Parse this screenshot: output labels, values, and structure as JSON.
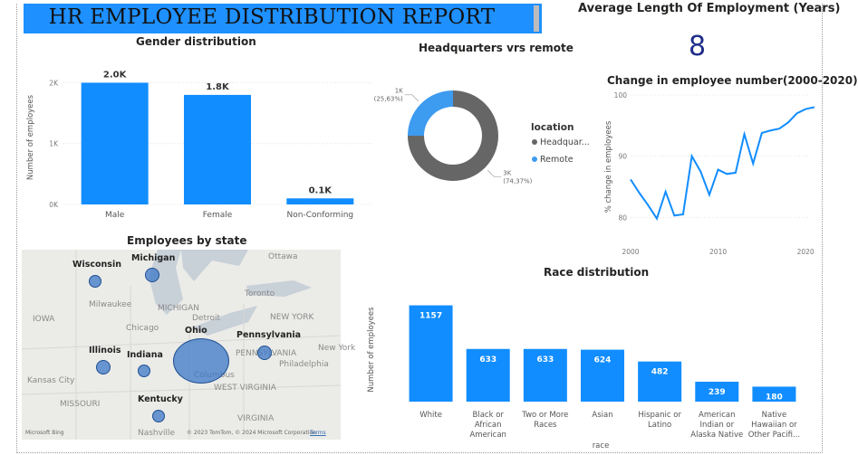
{
  "report": {
    "title": "HR EMPLOYEE DISTRIBUTION REPORT"
  },
  "kpi": {
    "label": "Average Length Of Employment (Years)",
    "value": "8"
  },
  "chart_data": [
    {
      "id": "gender",
      "type": "bar",
      "title": "Gender distribution",
      "ylabel": "Number of employees",
      "categories": [
        "Male",
        "Female",
        "Non-Conforming"
      ],
      "values": [
        2000,
        1800,
        100
      ],
      "data_labels": [
        "2.0K",
        "1.8K",
        "0.1K"
      ],
      "yticks": [
        0,
        1000,
        2000
      ],
      "ytick_labels": [
        "0K",
        "1K",
        "2K"
      ],
      "ylim": [
        0,
        2200
      ],
      "color": "#118dff"
    },
    {
      "id": "hq",
      "type": "pie",
      "title": "Headquarters vrs remote",
      "legend_title": "location",
      "labels": [
        "Headquar...",
        "Remote"
      ],
      "values": [
        3000,
        1000
      ],
      "percents": [
        74.37,
        25.63
      ],
      "slice_labels": [
        "3K",
        "1K"
      ],
      "slice_percent_labels": [
        "(74,37%)",
        "(25,63%)"
      ],
      "colors": [
        "#666666",
        "#3d9bf0"
      ]
    },
    {
      "id": "change",
      "type": "line",
      "title": "Change in employee number(2000-2020)",
      "ylabel": "% change in employees",
      "x": [
        2000,
        2001,
        2002,
        2003,
        2004,
        2005,
        2006,
        2007,
        2008,
        2009,
        2010,
        2011,
        2012,
        2013,
        2014,
        2015,
        2016,
        2017,
        2018,
        2019,
        2020,
        2021
      ],
      "y": [
        86.2,
        84,
        82,
        79.8,
        84.2,
        80.3,
        80.5,
        90,
        87.5,
        83.7,
        87.8,
        87.1,
        87.3,
        93.6,
        88.8,
        93.8,
        94.2,
        94.5,
        95.5,
        97,
        97.7,
        98
      ],
      "xticks": [
        2000,
        2010,
        2020
      ],
      "yticks": [
        80,
        90,
        100
      ],
      "xlim": [
        2000,
        2020.5
      ],
      "ylim": [
        76.5,
        100
      ],
      "color": "#118dff"
    },
    {
      "id": "race",
      "type": "bar",
      "title": "Race distribution",
      "ylabel": "Number of employees",
      "xlabel": "race",
      "categories": [
        "White",
        "Black or African American",
        "Two or More Races",
        "Asian",
        "Hispanic or Latino",
        "American Indian or Alaska Native",
        "Native Hawaiian or Other Pacifi..."
      ],
      "category_lines": [
        [
          "White"
        ],
        [
          "Black or",
          "African",
          "American"
        ],
        [
          "Two or More",
          "Races"
        ],
        [
          "Asian"
        ],
        [
          "Hispanic or",
          "Latino"
        ],
        [
          "American",
          "Indian or",
          "Alaska Native"
        ],
        [
          "Native",
          "Hawaiian or",
          "Other Pacifi..."
        ]
      ],
      "values": [
        1157,
        633,
        633,
        624,
        482,
        239,
        180
      ],
      "ylim": [
        0,
        1250
      ],
      "color": "#118dff"
    }
  ],
  "map": {
    "title": "Employees by state",
    "states": [
      {
        "name": "Wisconsin"
      },
      {
        "name": "Michigan"
      },
      {
        "name": "Ohio"
      },
      {
        "name": "Illinois"
      },
      {
        "name": "Indiana"
      },
      {
        "name": "Pennsylvania"
      },
      {
        "name": "Kentucky"
      }
    ],
    "places": [
      "Ottawa",
      "Toronto",
      "MICHIGAN",
      "Milwaukee",
      "Chicago",
      "Detroit",
      "NEW YORK",
      "IOWA",
      "MISSOURI",
      "Kansas City",
      "Philadelphia",
      "WEST VIRGINIA",
      "VIRGINIA",
      "Nashville",
      "New York",
      "Columbus",
      "PENNSYLVANIA"
    ],
    "attribution": "© 2023 TomTom, © 2024 Microsoft Corporation",
    "terms": "Terms",
    "provider": "Microsoft Bing"
  }
}
